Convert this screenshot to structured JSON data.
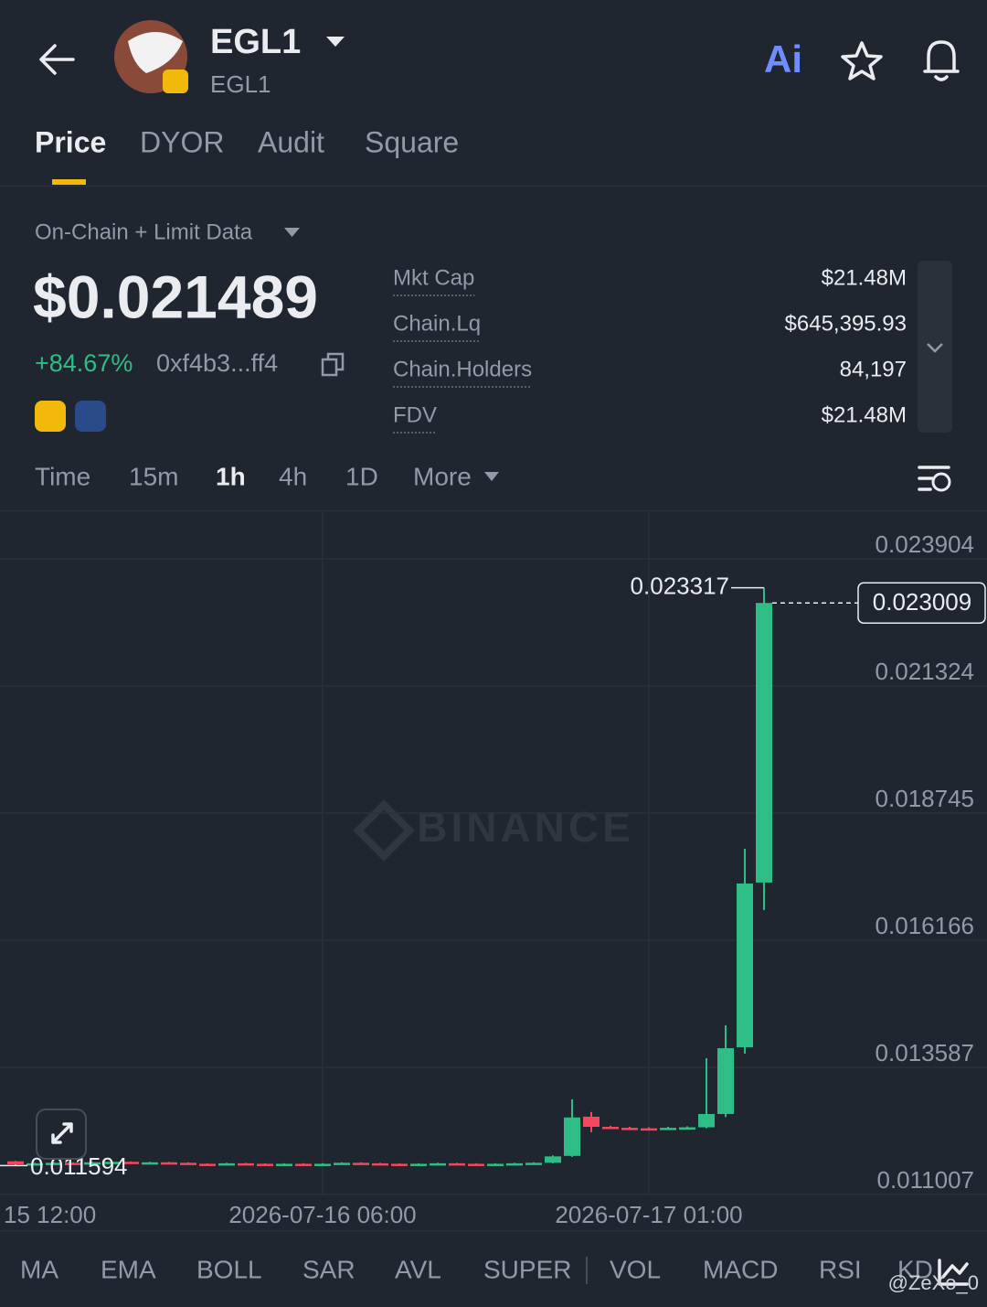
{
  "header": {
    "title": "EGL1",
    "subtitle": "EGL1",
    "ai": "Ai"
  },
  "tabs": [
    "Price",
    "DYOR",
    "Audit",
    "Square"
  ],
  "summary": {
    "data_source": "On-Chain + Limit Data",
    "price": "$0.021489",
    "change": "+84.67%",
    "address": "0xf4b3...ff4",
    "stats": [
      {
        "label": "Mkt Cap",
        "value": "$21.48M"
      },
      {
        "label": "Chain.Lq",
        "value": "$645,395.93"
      },
      {
        "label": "Chain.Holders",
        "value": "84,197"
      },
      {
        "label": "FDV",
        "value": "$21.48M"
      }
    ]
  },
  "intervals": [
    "Time",
    "15m",
    "1h",
    "4h",
    "1D",
    "More"
  ],
  "chart_data": {
    "type": "candlestick",
    "watermark": "BINANCE",
    "up_color": "#2ebd85",
    "down_color": "#f6465d",
    "categories": [
      "15 12:00",
      null,
      null,
      null,
      null,
      null,
      null,
      null,
      null,
      null,
      null,
      null,
      null,
      null,
      null,
      null,
      "2026-07-16 06:00",
      null,
      null,
      null,
      null,
      null,
      null,
      null,
      null,
      null,
      null,
      null,
      null,
      null,
      null,
      null,
      null,
      "2026-07-17 01:00",
      null,
      null,
      null,
      null,
      null,
      null
    ],
    "open": [
      0.01168,
      0.01162,
      0.01164,
      0.01165,
      0.01164,
      0.01166,
      0.01167,
      0.01165,
      0.01166,
      0.01165,
      0.01163,
      0.01162,
      0.01164,
      0.01163,
      0.01162,
      0.01163,
      0.01162,
      0.01163,
      0.01165,
      0.01164,
      0.01163,
      0.01162,
      0.01163,
      0.01164,
      0.01163,
      0.01162,
      0.01163,
      0.01164,
      0.01165,
      0.01179,
      0.012585,
      0.01238,
      0.01236,
      0.01235,
      0.01234,
      0.01236,
      0.01237,
      0.01264,
      0.013995,
      0.017336
    ],
    "close": [
      0.01162,
      0.01164,
      0.01165,
      0.01164,
      0.01166,
      0.01167,
      0.01165,
      0.01166,
      0.01165,
      0.01163,
      0.01162,
      0.01164,
      0.01163,
      0.01162,
      0.01163,
      0.01162,
      0.01163,
      0.01165,
      0.01164,
      0.01163,
      0.01162,
      0.01163,
      0.01164,
      0.01163,
      0.01162,
      0.01163,
      0.01164,
      0.01165,
      0.01178,
      0.01257,
      0.01238,
      0.01236,
      0.01235,
      0.01234,
      0.01236,
      0.01237,
      0.01264,
      0.013975,
      0.017317,
      0.023009
    ],
    "high": [
      0.01169,
      0.01165,
      0.01166,
      0.01166,
      0.01167,
      0.01168,
      0.01168,
      0.01167,
      0.01167,
      0.01166,
      0.01164,
      0.01165,
      0.01165,
      0.01164,
      0.01164,
      0.01164,
      0.01164,
      0.01166,
      0.01166,
      0.01165,
      0.01164,
      0.01164,
      0.01165,
      0.01165,
      0.01164,
      0.01164,
      0.01165,
      0.01166,
      0.0118,
      0.012938,
      0.01268,
      0.0124,
      0.01238,
      0.01237,
      0.01238,
      0.01239,
      0.013772,
      0.01444,
      0.018022,
      0.023317
    ],
    "low": [
      0.011594,
      0.01161,
      0.01163,
      0.01163,
      0.01163,
      0.01165,
      0.01164,
      0.01164,
      0.01164,
      0.01162,
      0.01161,
      0.01161,
      0.01162,
      0.01161,
      0.01161,
      0.01161,
      0.01161,
      0.01162,
      0.01163,
      0.01162,
      0.01161,
      0.01161,
      0.01162,
      0.01162,
      0.01161,
      0.01161,
      0.01162,
      0.01163,
      0.01164,
      0.01177,
      0.01227,
      0.01234,
      0.01233,
      0.01232,
      0.01233,
      0.01235,
      0.01235,
      0.01258,
      0.013865,
      0.016778
    ],
    "ylim": [
      0.011007,
      0.02485
    ],
    "yticks": [
      0.023904,
      0.021324,
      0.018745,
      0.016166,
      0.013587,
      0.011007
    ],
    "last_price": 0.023009,
    "high_marker": 0.023317,
    "low_marker": 0.011594,
    "grid": true
  },
  "indicators": [
    "MA",
    "EMA",
    "BOLL",
    "SAR",
    "AVL",
    "SUPER",
    "VOL",
    "MACD",
    "RSI",
    "KD"
  ],
  "watermark_user": "@ZeXo_0"
}
